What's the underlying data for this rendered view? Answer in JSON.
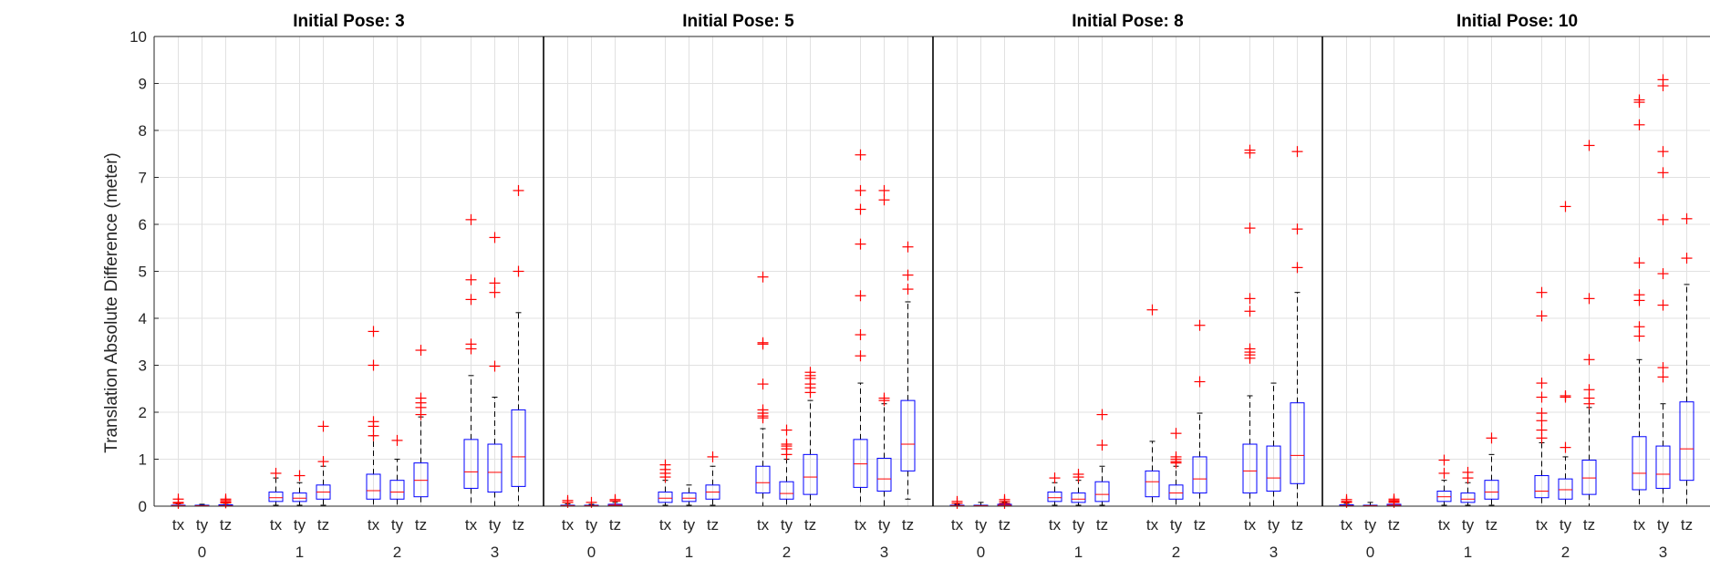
{
  "chart_data": {
    "type": "box",
    "ylabel": "Translation Absolute Difference (meter)",
    "ylim": [
      0,
      10
    ],
    "yticks": [
      "0",
      "1",
      "2",
      "3",
      "4",
      "5",
      "6",
      "7",
      "8",
      "9",
      "10"
    ],
    "grid": true,
    "colors": {
      "box": "#0000ff",
      "median": "#ff0000",
      "outlier": "#ff0000",
      "whisker": "#000000",
      "grid": "#e1e1e1"
    },
    "group_labels": [
      "0",
      "1",
      "2",
      "3"
    ],
    "component_labels": [
      "tx",
      "ty",
      "tz"
    ],
    "panels": [
      {
        "title": "Initial Pose: 3",
        "groups": [
          {
            "label": "0",
            "boxes": [
              {
                "name": "tx",
                "q1": 0.0,
                "median": 0.01,
                "q3": 0.02,
                "whisker_low": 0.0,
                "whisker_high": 0.05,
                "outliers": [
                  0.15,
                  0.08,
                  0.06
                ]
              },
              {
                "name": "ty",
                "q1": 0.0,
                "median": 0.01,
                "q3": 0.02,
                "whisker_low": 0.0,
                "whisker_high": 0.04,
                "outliers": []
              },
              {
                "name": "tz",
                "q1": 0.0,
                "median": 0.01,
                "q3": 0.03,
                "whisker_low": 0.0,
                "whisker_high": 0.06,
                "outliers": [
                  0.15,
                  0.12,
                  0.09,
                  0.07
                ]
              }
            ]
          },
          {
            "label": "1",
            "boxes": [
              {
                "name": "tx",
                "q1": 0.1,
                "median": 0.18,
                "q3": 0.3,
                "whisker_low": 0.02,
                "whisker_high": 0.6,
                "outliers": [
                  0.7
                ]
              },
              {
                "name": "ty",
                "q1": 0.1,
                "median": 0.17,
                "q3": 0.28,
                "whisker_low": 0.02,
                "whisker_high": 0.5,
                "outliers": [
                  0.65
                ]
              },
              {
                "name": "tz",
                "q1": 0.15,
                "median": 0.3,
                "q3": 0.45,
                "whisker_low": 0.02,
                "whisker_high": 0.85,
                "outliers": [
                  1.7,
                  0.95
                ]
              }
            ]
          },
          {
            "label": "2",
            "boxes": [
              {
                "name": "tx",
                "q1": 0.15,
                "median": 0.33,
                "q3": 0.68,
                "whisker_low": 0.0,
                "whisker_high": 1.5,
                "outliers": [
                  3.72,
                  3.0,
                  1.8,
                  1.7,
                  1.5
                ]
              },
              {
                "name": "ty",
                "q1": 0.15,
                "median": 0.3,
                "q3": 0.55,
                "whisker_low": 0.0,
                "whisker_high": 1.0,
                "outliers": [
                  1.4
                ]
              },
              {
                "name": "tz",
                "q1": 0.2,
                "median": 0.55,
                "q3": 0.92,
                "whisker_low": 0.0,
                "whisker_high": 1.9,
                "outliers": [
                  3.32,
                  2.3,
                  2.2,
                  2.1,
                  1.95
                ]
              }
            ]
          },
          {
            "label": "3",
            "boxes": [
              {
                "name": "tx",
                "q1": 0.38,
                "median": 0.73,
                "q3": 1.42,
                "whisker_low": 0.0,
                "whisker_high": 2.78,
                "outliers": [
                  6.1,
                  4.82,
                  4.4,
                  3.45,
                  3.35
                ]
              },
              {
                "name": "ty",
                "q1": 0.3,
                "median": 0.72,
                "q3": 1.32,
                "whisker_low": 0.0,
                "whisker_high": 2.32,
                "outliers": [
                  5.72,
                  4.75,
                  4.55,
                  2.98
                ]
              },
              {
                "name": "tz",
                "q1": 0.42,
                "median": 1.05,
                "q3": 2.05,
                "whisker_low": 0.0,
                "whisker_high": 4.12,
                "outliers": [
                  6.72,
                  5.0
                ]
              }
            ]
          }
        ]
      },
      {
        "title": "Initial Pose: 5",
        "groups": [
          {
            "label": "0",
            "boxes": [
              {
                "name": "tx",
                "q1": 0.0,
                "median": 0.01,
                "q3": 0.02,
                "whisker_low": 0.0,
                "whisker_high": 0.05,
                "outliers": [
                  0.12,
                  0.08
                ]
              },
              {
                "name": "ty",
                "q1": 0.0,
                "median": 0.01,
                "q3": 0.02,
                "whisker_low": 0.0,
                "whisker_high": 0.04,
                "outliers": [
                  0.08
                ]
              },
              {
                "name": "tz",
                "q1": 0.0,
                "median": 0.02,
                "q3": 0.04,
                "whisker_low": 0.0,
                "whisker_high": 0.08,
                "outliers": [
                  0.14,
                  0.11
                ]
              }
            ]
          },
          {
            "label": "1",
            "boxes": [
              {
                "name": "tx",
                "q1": 0.08,
                "median": 0.17,
                "q3": 0.3,
                "whisker_low": 0.02,
                "whisker_high": 0.55,
                "outliers": [
                  0.88,
                  0.78,
                  0.7,
                  0.62
                ]
              },
              {
                "name": "ty",
                "q1": 0.1,
                "median": 0.17,
                "q3": 0.28,
                "whisker_low": 0.02,
                "whisker_high": 0.45,
                "outliers": []
              },
              {
                "name": "tz",
                "q1": 0.15,
                "median": 0.3,
                "q3": 0.45,
                "whisker_low": 0.02,
                "whisker_high": 0.85,
                "outliers": [
                  1.05
                ]
              }
            ]
          },
          {
            "label": "2",
            "boxes": [
              {
                "name": "tx",
                "q1": 0.28,
                "median": 0.5,
                "q3": 0.85,
                "whisker_low": 0.0,
                "whisker_high": 1.65,
                "outliers": [
                  4.88,
                  3.48,
                  3.45,
                  2.6,
                  2.05,
                  1.98,
                  1.92,
                  1.88
                ]
              },
              {
                "name": "ty",
                "q1": 0.15,
                "median": 0.27,
                "q3": 0.52,
                "whisker_low": 0.0,
                "whisker_high": 1.0,
                "outliers": [
                  1.62,
                  1.32,
                  1.28,
                  1.22,
                  1.1
                ]
              },
              {
                "name": "tz",
                "q1": 0.25,
                "median": 0.62,
                "q3": 1.1,
                "whisker_low": 0.0,
                "whisker_high": 2.25,
                "outliers": [
                  2.85,
                  2.78,
                  2.72,
                  2.6,
                  2.52,
                  2.42
                ]
              }
            ]
          },
          {
            "label": "3",
            "boxes": [
              {
                "name": "tx",
                "q1": 0.4,
                "median": 0.9,
                "q3": 1.42,
                "whisker_low": 0.0,
                "whisker_high": 2.62,
                "outliers": [
                  7.48,
                  6.72,
                  6.32,
                  5.58,
                  4.48,
                  3.65,
                  3.2
                ]
              },
              {
                "name": "ty",
                "q1": 0.32,
                "median": 0.58,
                "q3": 1.02,
                "whisker_low": 0.0,
                "whisker_high": 2.18,
                "outliers": [
                  6.72,
                  6.52,
                  2.3,
                  2.25
                ]
              },
              {
                "name": "tz",
                "q1": 0.75,
                "median": 1.32,
                "q3": 2.25,
                "whisker_low": 0.15,
                "whisker_high": 4.35,
                "outliers": [
                  5.52,
                  4.92,
                  4.62
                ]
              }
            ]
          }
        ]
      },
      {
        "title": "Initial Pose: 8",
        "groups": [
          {
            "label": "0",
            "boxes": [
              {
                "name": "tx",
                "q1": 0.0,
                "median": 0.01,
                "q3": 0.02,
                "whisker_low": 0.0,
                "whisker_high": 0.04,
                "outliers": [
                  0.1,
                  0.06
                ]
              },
              {
                "name": "ty",
                "q1": 0.0,
                "median": 0.01,
                "q3": 0.02,
                "whisker_low": 0.0,
                "whisker_high": 0.08,
                "outliers": []
              },
              {
                "name": "tz",
                "q1": 0.0,
                "median": 0.02,
                "q3": 0.04,
                "whisker_low": 0.0,
                "whisker_high": 0.08,
                "outliers": [
                  0.14,
                  0.1,
                  0.06
                ]
              }
            ]
          },
          {
            "label": "1",
            "boxes": [
              {
                "name": "tx",
                "q1": 0.1,
                "median": 0.18,
                "q3": 0.3,
                "whisker_low": 0.02,
                "whisker_high": 0.5,
                "outliers": [
                  0.6
                ]
              },
              {
                "name": "ty",
                "q1": 0.08,
                "median": 0.15,
                "q3": 0.28,
                "whisker_low": 0.02,
                "whisker_high": 0.55,
                "outliers": [
                  0.68,
                  0.62
                ]
              },
              {
                "name": "tz",
                "q1": 0.1,
                "median": 0.25,
                "q3": 0.52,
                "whisker_low": 0.02,
                "whisker_high": 0.85,
                "outliers": [
                  1.95,
                  1.3
                ]
              }
            ]
          },
          {
            "label": "2",
            "boxes": [
              {
                "name": "tx",
                "q1": 0.2,
                "median": 0.52,
                "q3": 0.75,
                "whisker_low": 0.0,
                "whisker_high": 1.38,
                "outliers": [
                  4.18
                ]
              },
              {
                "name": "ty",
                "q1": 0.15,
                "median": 0.28,
                "q3": 0.45,
                "whisker_low": 0.0,
                "whisker_high": 0.85,
                "outliers": [
                  1.55,
                  1.05,
                  1.0,
                  0.95,
                  0.92
                ]
              },
              {
                "name": "tz",
                "q1": 0.28,
                "median": 0.58,
                "q3": 1.05,
                "whisker_low": 0.0,
                "whisker_high": 1.98,
                "outliers": [
                  3.85,
                  2.65
                ]
              }
            ]
          },
          {
            "label": "3",
            "boxes": [
              {
                "name": "tx",
                "q1": 0.28,
                "median": 0.75,
                "q3": 1.32,
                "whisker_low": 0.0,
                "whisker_high": 2.35,
                "outliers": [
                  7.58,
                  7.52,
                  5.92,
                  4.42,
                  4.15,
                  3.35,
                  3.28,
                  3.22,
                  3.15
                ]
              },
              {
                "name": "ty",
                "q1": 0.32,
                "median": 0.6,
                "q3": 1.28,
                "whisker_low": 0.0,
                "whisker_high": 2.62,
                "outliers": []
              },
              {
                "name": "tz",
                "q1": 0.48,
                "median": 1.08,
                "q3": 2.2,
                "whisker_low": 0.0,
                "whisker_high": 4.55,
                "outliers": [
                  7.55,
                  5.9,
                  5.08
                ]
              }
            ]
          }
        ]
      },
      {
        "title": "Initial Pose: 10",
        "groups": [
          {
            "label": "0",
            "boxes": [
              {
                "name": "tx",
                "q1": 0.0,
                "median": 0.01,
                "q3": 0.03,
                "whisker_low": 0.0,
                "whisker_high": 0.06,
                "outliers": [
                  0.14,
                  0.1,
                  0.08
                ]
              },
              {
                "name": "ty",
                "q1": 0.0,
                "median": 0.01,
                "q3": 0.02,
                "whisker_low": 0.0,
                "whisker_high": 0.08,
                "outliers": []
              },
              {
                "name": "tz",
                "q1": 0.0,
                "median": 0.02,
                "q3": 0.04,
                "whisker_low": 0.0,
                "whisker_high": 0.1,
                "outliers": [
                  0.15,
                  0.12,
                  0.1,
                  0.08
                ]
              }
            ]
          },
          {
            "label": "1",
            "boxes": [
              {
                "name": "tx",
                "q1": 0.1,
                "median": 0.2,
                "q3": 0.32,
                "whisker_low": 0.02,
                "whisker_high": 0.55,
                "outliers": [
                  0.98,
                  0.7
                ]
              },
              {
                "name": "ty",
                "q1": 0.08,
                "median": 0.15,
                "q3": 0.28,
                "whisker_low": 0.02,
                "whisker_high": 0.5,
                "outliers": [
                  0.72,
                  0.6
                ]
              },
              {
                "name": "tz",
                "q1": 0.15,
                "median": 0.3,
                "q3": 0.55,
                "whisker_low": 0.02,
                "whisker_high": 1.1,
                "outliers": [
                  1.45
                ]
              }
            ]
          },
          {
            "label": "2",
            "boxes": [
              {
                "name": "tx",
                "q1": 0.18,
                "median": 0.32,
                "q3": 0.65,
                "whisker_low": 0.0,
                "whisker_high": 1.35,
                "outliers": [
                  4.55,
                  4.05,
                  2.62,
                  2.32,
                  1.98,
                  1.82,
                  1.62,
                  1.45
                ]
              },
              {
                "name": "ty",
                "q1": 0.15,
                "median": 0.35,
                "q3": 0.58,
                "whisker_low": 0.0,
                "whisker_high": 1.05,
                "outliers": [
                  6.38,
                  2.35,
                  2.32,
                  1.25
                ]
              },
              {
                "name": "tz",
                "q1": 0.25,
                "median": 0.6,
                "q3": 0.98,
                "whisker_low": 0.0,
                "whisker_high": 2.1,
                "outliers": [
                  7.68,
                  4.42,
                  3.12,
                  2.48,
                  2.3,
                  2.18
                ]
              }
            ]
          },
          {
            "label": "3",
            "boxes": [
              {
                "name": "tx",
                "q1": 0.35,
                "median": 0.7,
                "q3": 1.48,
                "whisker_low": 0.0,
                "whisker_high": 3.12,
                "outliers": [
                  8.65,
                  8.6,
                  8.12,
                  5.18,
                  4.5,
                  4.38,
                  3.82,
                  3.62
                ]
              },
              {
                "name": "ty",
                "q1": 0.38,
                "median": 0.68,
                "q3": 1.28,
                "whisker_low": 0.0,
                "whisker_high": 2.18,
                "outliers": [
                  9.08,
                  8.95,
                  7.55,
                  7.1,
                  6.1,
                  4.95,
                  4.28,
                  2.95,
                  2.75
                ]
              },
              {
                "name": "tz",
                "q1": 0.55,
                "median": 1.22,
                "q3": 2.22,
                "whisker_low": 0.0,
                "whisker_high": 4.72,
                "outliers": [
                  6.12,
                  5.28
                ]
              }
            ]
          }
        ]
      }
    ]
  }
}
